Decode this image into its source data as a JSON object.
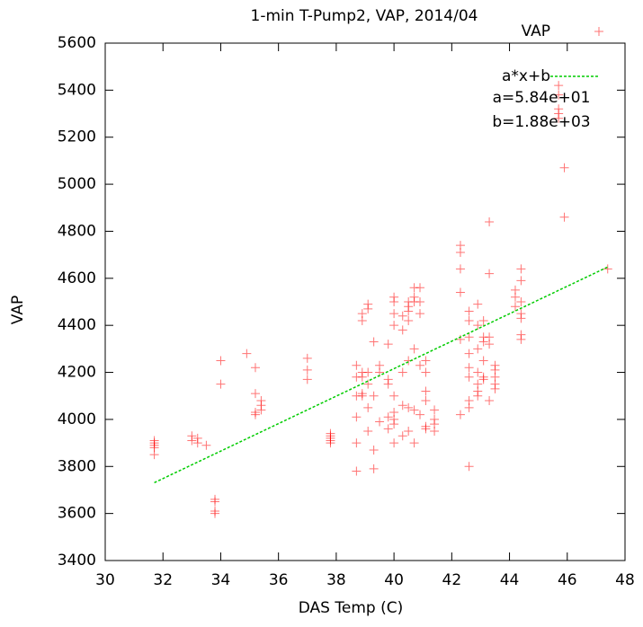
{
  "chart_data": {
    "type": "scatter",
    "title": "1-min T-Pump2, VAP, 2014/04",
    "x_label": "DAS Temp (C)",
    "y_label": "VAP",
    "annotations": [
      "a=5.84e+01",
      "b=1.88e+03"
    ],
    "legend": "top right",
    "grid": false,
    "xlim": [
      30,
      48
    ],
    "xticks": [
      30,
      32,
      34,
      36,
      38,
      40,
      42,
      44,
      46,
      48
    ],
    "ylim": [
      3400,
      5600
    ],
    "yticks": [
      3400,
      3600,
      3800,
      4000,
      4200,
      4400,
      4600,
      4800,
      5000,
      5200,
      5400,
      5600
    ],
    "series": [
      {
        "name": "VAP",
        "color": "#ff0000",
        "type": "scatter",
        "x": [
          31.7,
          31.7,
          31.7,
          31.7,
          31.7,
          33.0,
          33.0,
          33.2,
          33.2,
          33.5,
          33.8,
          33.8,
          33.8,
          33.8,
          34.0,
          34.0,
          34.9,
          35.2,
          35.2,
          35.2,
          35.2,
          35.4,
          35.4,
          35.4,
          37.0,
          37.0,
          37.0,
          37.8,
          37.8,
          37.8,
          37.8,
          37.8,
          38.7,
          38.7,
          38.7,
          38.7,
          38.7,
          38.7,
          38.9,
          38.9,
          38.9,
          38.9,
          38.9,
          38.9,
          39.1,
          39.1,
          39.1,
          39.1,
          39.1,
          39.1,
          39.3,
          39.3,
          39.3,
          39.3,
          39.5,
          39.5,
          39.5,
          39.8,
          39.8,
          39.8,
          39.8,
          39.8,
          40.0,
          40.0,
          40.0,
          40.0,
          40.0,
          40.0,
          40.0,
          40.0,
          40.0,
          40.3,
          40.3,
          40.3,
          40.3,
          40.3,
          40.5,
          40.5,
          40.5,
          40.5,
          40.5,
          40.5,
          40.5,
          40.7,
          40.7,
          40.7,
          40.7,
          40.7,
          40.7,
          40.9,
          40.9,
          40.9,
          40.9,
          40.9,
          41.1,
          41.1,
          41.1,
          41.1,
          41.1,
          41.1,
          41.4,
          41.4,
          41.4,
          41.4,
          42.3,
          42.3,
          42.3,
          42.3,
          42.3,
          42.3,
          42.6,
          42.6,
          42.6,
          42.6,
          42.6,
          42.6,
          42.6,
          42.6,
          42.6,
          42.9,
          42.9,
          42.9,
          42.9,
          42.9,
          42.9,
          42.9,
          43.1,
          43.1,
          43.1,
          43.1,
          43.1,
          43.1,
          43.3,
          43.3,
          43.3,
          43.3,
          43.3,
          43.5,
          43.5,
          43.5,
          43.5,
          43.5,
          44.2,
          44.2,
          44.2,
          44.4,
          44.4,
          44.4,
          44.4,
          44.4,
          44.4,
          44.4,
          45.7,
          45.7,
          45.7,
          45.7,
          45.7,
          45.9,
          45.9,
          47.4
        ],
        "values": [
          3900,
          3890,
          3880,
          3850,
          3910,
          3930,
          3910,
          3920,
          3900,
          3890,
          3660,
          3650,
          3600,
          3610,
          4250,
          4150,
          4280,
          4220,
          4110,
          4030,
          4020,
          4060,
          4080,
          4040,
          4260,
          4210,
          4170,
          3940,
          3920,
          3910,
          3900,
          3930,
          4230,
          4180,
          4100,
          4010,
          3900,
          3780,
          4420,
          4450,
          4200,
          4110,
          4100,
          4180,
          4490,
          4470,
          4200,
          4150,
          4050,
          3950,
          4330,
          4100,
          3790,
          3870,
          4230,
          4200,
          3990,
          4170,
          4150,
          4010,
          3960,
          4320,
          4520,
          4500,
          4450,
          4400,
          4100,
          4030,
          4000,
          3980,
          3900,
          4440,
          4380,
          4200,
          4060,
          3930,
          4500,
          4480,
          4460,
          4420,
          4250,
          4050,
          3950,
          4560,
          4520,
          4500,
          4300,
          4040,
          3900,
          4560,
          4500,
          4450,
          4230,
          4020,
          4250,
          4200,
          4120,
          4080,
          3970,
          3960,
          4040,
          4000,
          3980,
          3950,
          4740,
          4710,
          4640,
          4540,
          4340,
          4020,
          4460,
          4420,
          4350,
          4280,
          4220,
          4180,
          4080,
          4050,
          3800,
          4490,
          4400,
          4300,
          4200,
          4150,
          4120,
          4100,
          4420,
          4350,
          4330,
          4250,
          4180,
          4170,
          4840,
          4620,
          4350,
          4320,
          4080,
          4230,
          4210,
          4180,
          4150,
          4130,
          4550,
          4520,
          4480,
          4640,
          4590,
          4500,
          4450,
          4430,
          4360,
          4340,
          5420,
          5380,
          5320,
          5300,
          5280,
          5070,
          4860,
          4640
        ]
      },
      {
        "name": "a*x+b",
        "color": "#00cc00",
        "type": "line",
        "x": [
          31.7,
          47.4
        ],
        "values": [
          3731,
          4648
        ]
      }
    ]
  }
}
